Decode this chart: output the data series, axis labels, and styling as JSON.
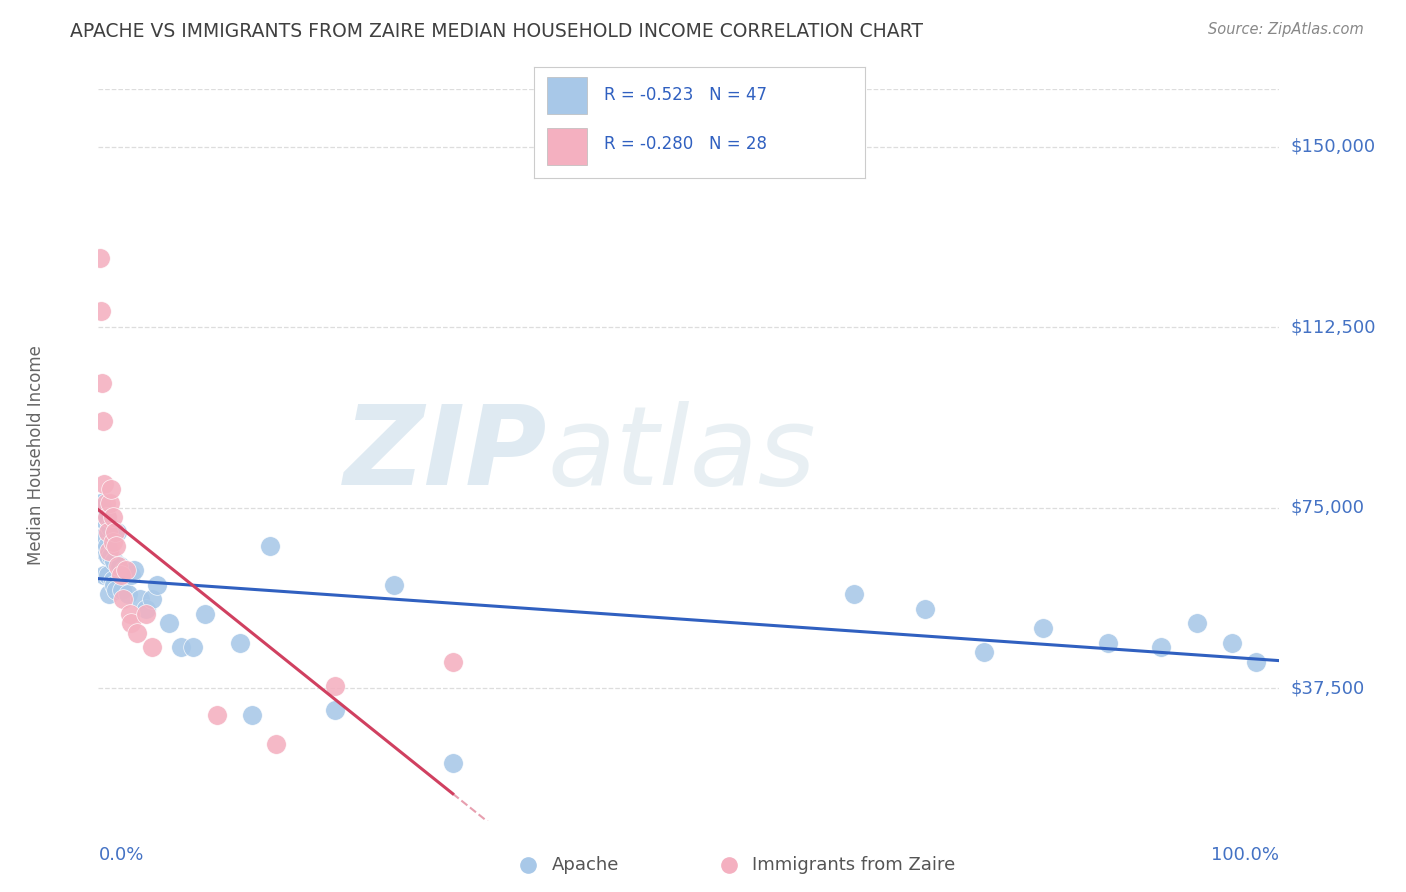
{
  "title": "APACHE VS IMMIGRANTS FROM ZAIRE MEDIAN HOUSEHOLD INCOME CORRELATION CHART",
  "source": "Source: ZipAtlas.com",
  "ylabel": "Median Household Income",
  "ytick_labels": [
    "$37,500",
    "$75,000",
    "$112,500",
    "$150,000"
  ],
  "ytick_values": [
    37500,
    75000,
    112500,
    150000
  ],
  "ymin": 10000,
  "ymax": 162000,
  "xmin": 0.0,
  "xmax": 1.0,
  "apache_color": "#a8c8e8",
  "zaire_color": "#f4b0c0",
  "apache_line_color": "#3060c0",
  "zaire_line_color": "#d04060",
  "grid_color": "#dddddd",
  "title_color": "#404040",
  "axis_label_color": "#4472c4",
  "apache_x": [
    0.002,
    0.003,
    0.004,
    0.005,
    0.005,
    0.006,
    0.007,
    0.007,
    0.008,
    0.008,
    0.009,
    0.01,
    0.011,
    0.012,
    0.013,
    0.013,
    0.015,
    0.016,
    0.018,
    0.02,
    0.022,
    0.025,
    0.028,
    0.03,
    0.035,
    0.04,
    0.045,
    0.05,
    0.06,
    0.07,
    0.08,
    0.09,
    0.12,
    0.13,
    0.145,
    0.2,
    0.25,
    0.3,
    0.64,
    0.7,
    0.75,
    0.8,
    0.855,
    0.9,
    0.93,
    0.96,
    0.98
  ],
  "apache_y": [
    76000,
    75000,
    69000,
    66000,
    61000,
    72000,
    73000,
    67000,
    65000,
    61000,
    57000,
    71000,
    65000,
    60000,
    59000,
    64000,
    58000,
    70000,
    63000,
    58000,
    62000,
    57000,
    61000,
    62000,
    56000,
    54000,
    56000,
    59000,
    51000,
    46000,
    46000,
    53000,
    47000,
    32000,
    67000,
    33000,
    59000,
    22000,
    57000,
    54000,
    45000,
    50000,
    47000,
    46000,
    51000,
    47000,
    43000
  ],
  "zaire_x": [
    0.001,
    0.002,
    0.003,
    0.004,
    0.005,
    0.006,
    0.007,
    0.008,
    0.009,
    0.01,
    0.011,
    0.012,
    0.012,
    0.014,
    0.015,
    0.017,
    0.019,
    0.021,
    0.023,
    0.027,
    0.028,
    0.033,
    0.04,
    0.045,
    0.1,
    0.15,
    0.2,
    0.3
  ],
  "zaire_y": [
    127000,
    116000,
    101000,
    93000,
    80000,
    76000,
    73000,
    70000,
    66000,
    76000,
    79000,
    73000,
    68000,
    70000,
    67000,
    63000,
    61000,
    56000,
    62000,
    53000,
    51000,
    49000,
    53000,
    46000,
    32000,
    26000,
    38000,
    43000
  ]
}
